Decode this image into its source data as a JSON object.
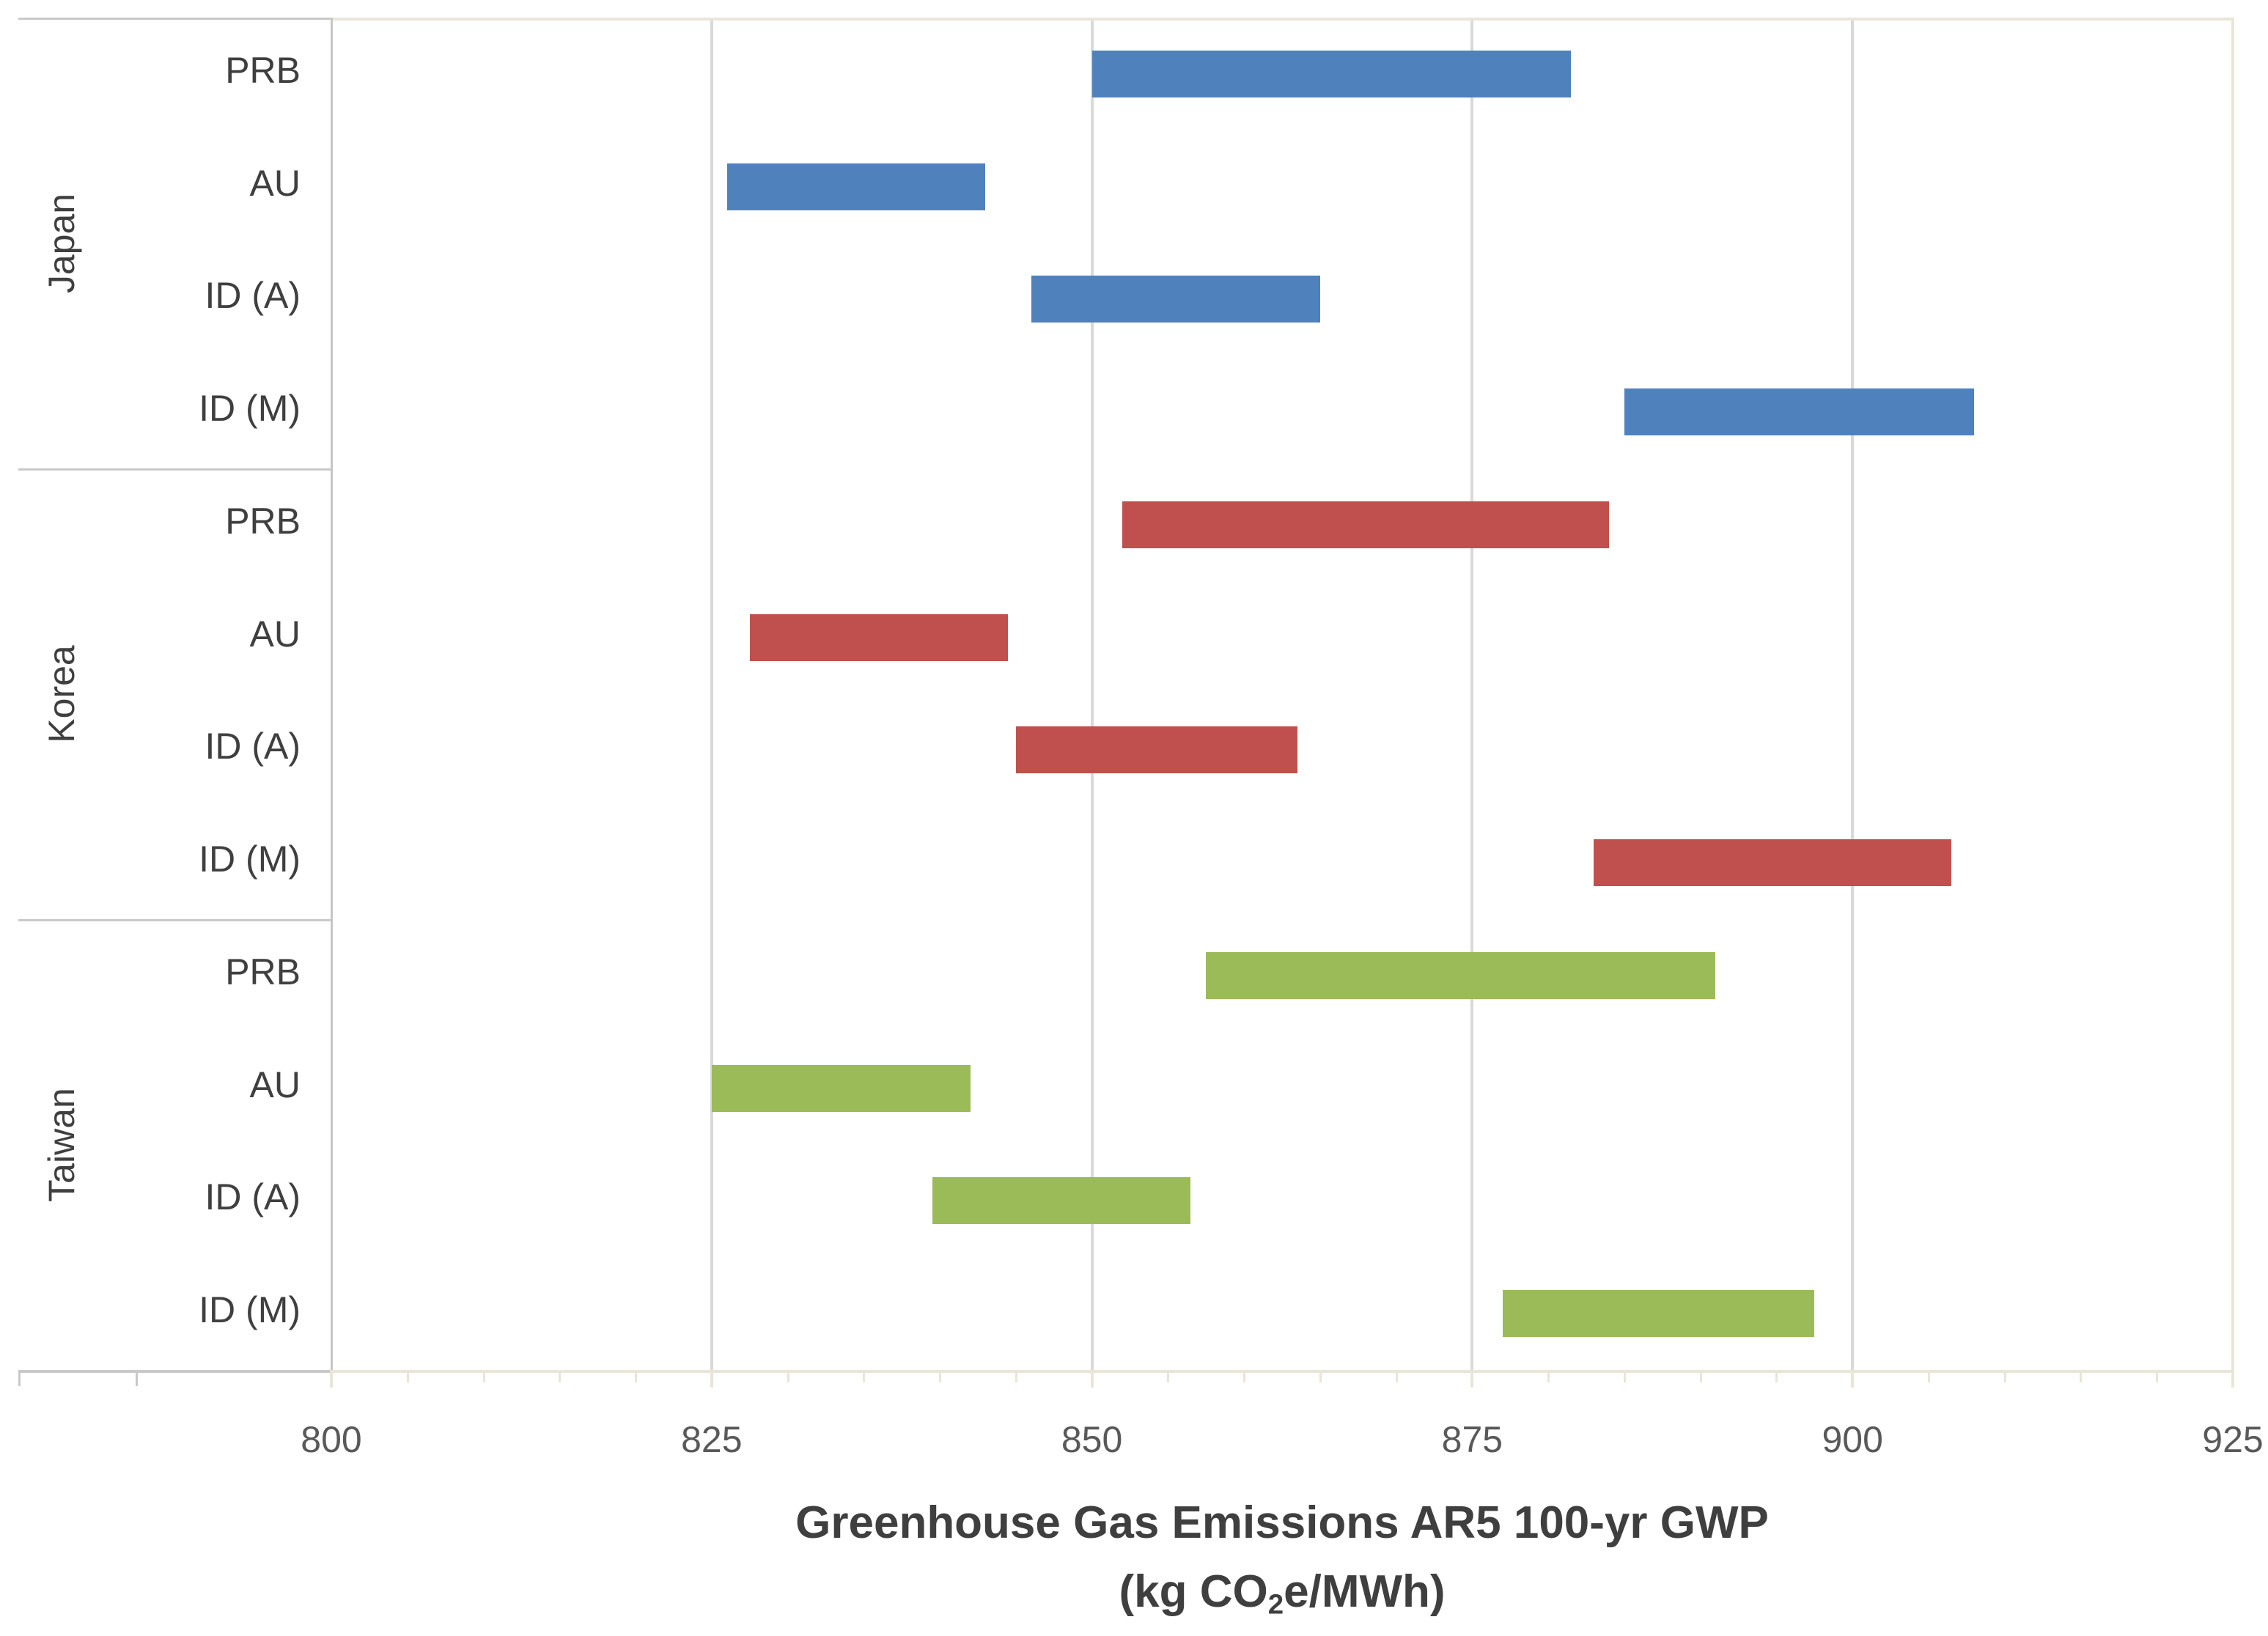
{
  "chart_data": {
    "type": "bar",
    "subtype": "horizontal-floating-range",
    "title": "Greenhouse Gas Emissions AR5 100-yr GWP",
    "subtitle_full": "(kg CO₂e/MWh)",
    "subtitle_pre": "(kg CO",
    "subtitle_sub": "2",
    "subtitle_post": "e/MWh)",
    "xlabel": "Greenhouse Gas Emissions AR5 100-yr GWP (kg CO₂e/MWh)",
    "ylabel": "",
    "xlim": [
      800,
      925
    ],
    "x_major_ticks": [
      800,
      825,
      850,
      875,
      900,
      925
    ],
    "x_minor_step": 5,
    "gridlines": [
      825,
      850,
      875,
      900
    ],
    "grid": true,
    "legend": "none",
    "categories_per_group": [
      "PRB",
      "AU",
      "ID (A)",
      "ID (M)"
    ],
    "groups": [
      {
        "name": "Japan",
        "color": "#4F81BD",
        "categories": [
          "PRB",
          "AU",
          "ID (A)",
          "ID (M)"
        ],
        "ranges": [
          [
            850,
            881.5
          ],
          [
            826,
            843
          ],
          [
            846,
            865
          ],
          [
            885,
            908
          ]
        ]
      },
      {
        "name": "Korea",
        "color": "#C0504D",
        "categories": [
          "PRB",
          "AU",
          "ID (A)",
          "ID (M)"
        ],
        "ranges": [
          [
            852,
            884
          ],
          [
            827.5,
            844.5
          ],
          [
            845,
            863.5
          ],
          [
            883,
            906.5
          ]
        ]
      },
      {
        "name": "Taiwan",
        "color": "#9BBB59",
        "categories": [
          "PRB",
          "AU",
          "ID (A)",
          "ID (M)"
        ],
        "ranges": [
          [
            857.5,
            891
          ],
          [
            825,
            842
          ],
          [
            839.5,
            856.5
          ],
          [
            877,
            897.5
          ]
        ]
      }
    ]
  },
  "colors": {
    "background": "#FFFFFF",
    "gridline": "#D9D9D9",
    "plot_border": "#E9E5D8",
    "axis_tick": "#E9E5D8",
    "label_area_line": "#C9C9C9",
    "y_axis_line": "#C6C6C6",
    "axis_text": "#595959",
    "category_text": "#3F3F3F",
    "title_text": "#3F3F3F",
    "series_blue": "#4F81BD",
    "series_red": "#C0504D",
    "series_green": "#9BBB59"
  }
}
